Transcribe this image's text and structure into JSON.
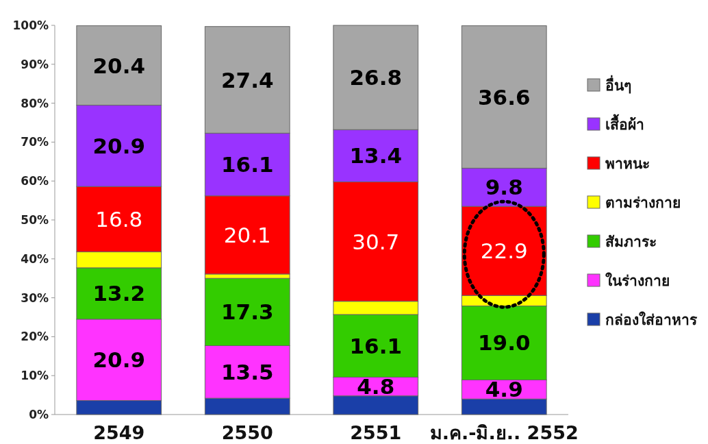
{
  "chart_data": {
    "type": "bar",
    "stacked": true,
    "categories": [
      "2549",
      "2550",
      "2551",
      "ม.ค.-มิ.ย.. 2552"
    ],
    "ylim": [
      0,
      100
    ],
    "yticks": [
      {
        "value": 0,
        "label": "0%"
      },
      {
        "value": 10,
        "label": "10%"
      },
      {
        "value": 20,
        "label": "20%"
      },
      {
        "value": 30,
        "label": "30%"
      },
      {
        "value": 40,
        "label": "40%"
      },
      {
        "value": 50,
        "label": "50%"
      },
      {
        "value": 60,
        "label": "60%"
      },
      {
        "value": 70,
        "label": "70%"
      },
      {
        "value": 80,
        "label": "80%"
      },
      {
        "value": 90,
        "label": "90%"
      },
      {
        "value": 100,
        "label": "100%"
      }
    ],
    "legend": "right",
    "grid": false,
    "series": [
      {
        "name": "กล่องใส่อาหาร",
        "color": "#1a3fa8",
        "values": [
          3.6,
          4.2,
          4.8,
          4.0
        ],
        "value_labels": [
          null,
          null,
          null,
          null
        ]
      },
      {
        "name": "ในร่างกาย",
        "color": "#ff33ff",
        "values": [
          20.9,
          13.5,
          4.8,
          4.9
        ],
        "value_labels": [
          "20.9",
          "13.5",
          "4.8",
          "4.9"
        ]
      },
      {
        "name": "สัมภาระ",
        "color": "#33cc00",
        "values": [
          13.2,
          17.3,
          16.1,
          19.0
        ],
        "value_labels": [
          "13.2",
          "17.3",
          "16.1",
          "19.0"
        ]
      },
      {
        "name": "ตามร่างกาย",
        "color": "#ffff00",
        "values": [
          4.1,
          1.1,
          3.4,
          2.7
        ],
        "value_labels": [
          null,
          null,
          null,
          null
        ]
      },
      {
        "name": "พาหนะ",
        "color": "#ff0000",
        "values": [
          16.8,
          20.1,
          30.7,
          22.9
        ],
        "value_labels": [
          "16.8",
          "20.1",
          "30.7",
          "22.9"
        ]
      },
      {
        "name": "เสื้อผ้า",
        "color": "#9933ff",
        "values": [
          20.9,
          16.1,
          13.4,
          9.8
        ],
        "value_labels": [
          "20.9",
          "16.1",
          "13.4",
          "9.8"
        ]
      },
      {
        "name": "อื่นๆ",
        "color": "#a6a6a6",
        "values": [
          20.4,
          27.4,
          26.8,
          36.6
        ],
        "value_labels": [
          "20.4",
          "27.4",
          "26.8",
          "36.6"
        ]
      }
    ]
  }
}
